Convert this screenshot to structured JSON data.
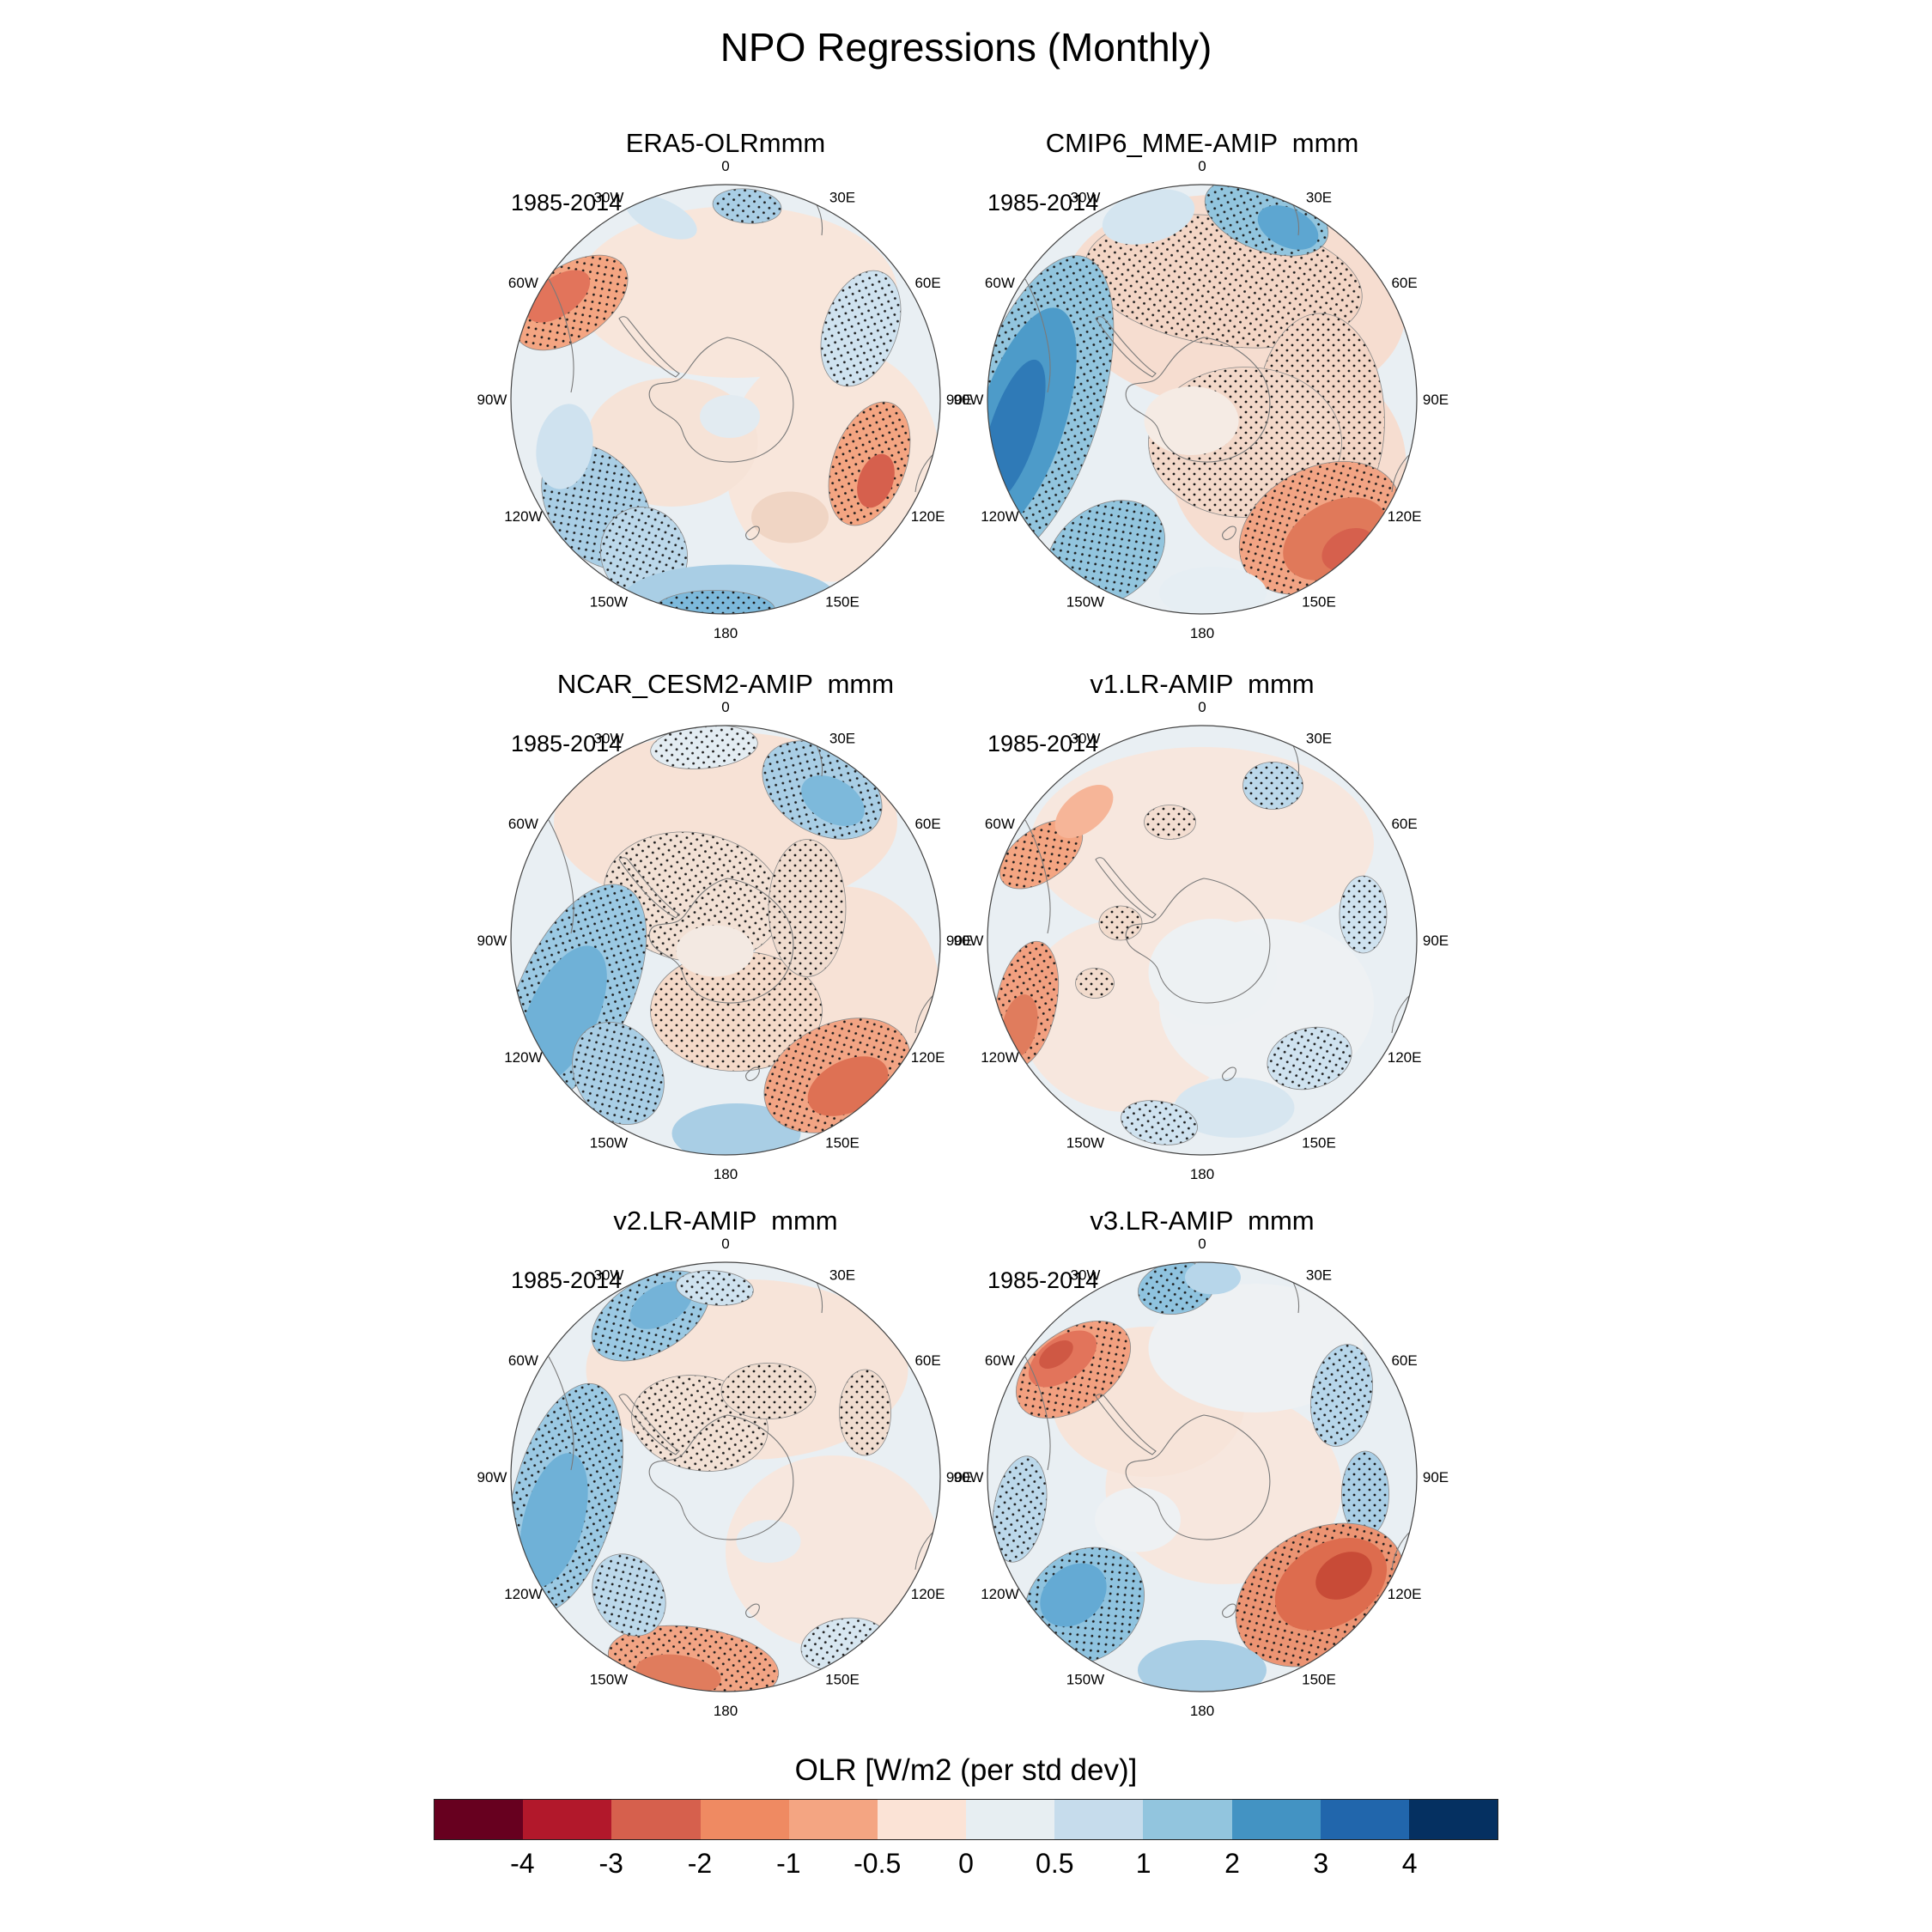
{
  "title": "NPO Regressions (Monthly)",
  "colorbar": {
    "label": "OLR [W/m2 (per std dev)]",
    "ticks": [
      "-4",
      "-3",
      "-2",
      "-1",
      "-0.5",
      "0",
      "0.5",
      "1",
      "2",
      "3",
      "4"
    ],
    "colors": [
      "#67001f",
      "#b2182b",
      "#d6604d",
      "#ef8a62",
      "#f4a582",
      "#fbe3d6",
      "#e7eef2",
      "#c6dcec",
      "#92c5de",
      "#4393c3",
      "#2166ac",
      "#053061"
    ]
  },
  "lon_labels": [
    "0",
    "30E",
    "60E",
    "90E",
    "120E",
    "150E",
    "180",
    "150W",
    "120W",
    "90W",
    "60W",
    "30W"
  ],
  "chart_data": {
    "type": "heatmap",
    "title": "NPO Regressions (Monthly)",
    "variable": "OLR [W/m2 (per std dev)]",
    "projection": "south-polar-stereographic",
    "period": "1985-2014",
    "value_ticks": [
      -4,
      -3,
      -2,
      -1,
      -0.5,
      0,
      0.5,
      1,
      2,
      3,
      4
    ],
    "base_color": "#e9eff3",
    "stipple_note": "dotted regions indicate statistical significance",
    "panels": [
      {
        "name": "ERA5-OLRmmm",
        "period": "1985-2014",
        "features": [
          {
            "x": 0.05,
            "y": -0.5,
            "rx": 0.75,
            "ry": 0.4,
            "rot": 0,
            "c": "#f8e6db"
          },
          {
            "x": 0.5,
            "y": 0.3,
            "rx": 0.5,
            "ry": 0.55,
            "rot": 0,
            "c": "#f8e6db"
          },
          {
            "x": -0.25,
            "y": 0.2,
            "rx": 0.4,
            "ry": 0.3,
            "rot": 0,
            "c": "#f6e3d7"
          },
          {
            "x": -0.72,
            "y": -0.45,
            "rx": 0.3,
            "ry": 0.17,
            "rot": -35,
            "c": "#f4a582",
            "s": true
          },
          {
            "x": -0.78,
            "y": -0.48,
            "rx": 0.17,
            "ry": 0.09,
            "rot": -35,
            "c": "#e2745b"
          },
          {
            "x": 0.63,
            "y": -0.33,
            "rx": 0.17,
            "ry": 0.28,
            "rot": 20,
            "c": "#cfe2ef",
            "s": true
          },
          {
            "x": 0.1,
            "y": -0.9,
            "rx": 0.16,
            "ry": 0.08,
            "rot": 5,
            "c": "#a9cee5",
            "s": true
          },
          {
            "x": -0.3,
            "y": -0.85,
            "rx": 0.18,
            "ry": 0.08,
            "rot": 25,
            "c": "#d4e5f0"
          },
          {
            "x": 0.67,
            "y": 0.3,
            "rx": 0.17,
            "ry": 0.3,
            "rot": 20,
            "c": "#f4a582",
            "s": true
          },
          {
            "x": 0.7,
            "y": 0.38,
            "rx": 0.08,
            "ry": 0.13,
            "rot": 20,
            "c": "#d6604d"
          },
          {
            "x": -0.6,
            "y": 0.5,
            "rx": 0.22,
            "ry": 0.32,
            "rot": -35,
            "c": "#a9cee5",
            "s": true
          },
          {
            "x": -0.38,
            "y": 0.72,
            "rx": 0.2,
            "ry": 0.22,
            "rot": -20,
            "c": "#bcd8ea",
            "s": true
          },
          {
            "x": -0.75,
            "y": 0.22,
            "rx": 0.13,
            "ry": 0.2,
            "rot": 10,
            "c": "#cfe2ef"
          },
          {
            "x": 0.02,
            "y": 0.93,
            "rx": 0.5,
            "ry": 0.16,
            "rot": 0,
            "c": "#a9cee5"
          },
          {
            "x": -0.05,
            "y": 0.98,
            "rx": 0.28,
            "ry": 0.09,
            "rot": 0,
            "c": "#7db9db",
            "s": true
          },
          {
            "x": 0.02,
            "y": 0.08,
            "rx": 0.14,
            "ry": 0.1,
            "rot": 0,
            "c": "#e2ebf1"
          },
          {
            "x": 0.3,
            "y": 0.55,
            "rx": 0.18,
            "ry": 0.12,
            "rot": 0,
            "c": "#f0d5c4"
          }
        ]
      },
      {
        "name": "CMIP6_MME-AMIP  mmm",
        "period": "1985-2014",
        "features": [
          {
            "x": 0.15,
            "y": -0.45,
            "rx": 0.8,
            "ry": 0.5,
            "rot": 5,
            "c": "#f6ddd0"
          },
          {
            "x": 0.4,
            "y": 0.3,
            "rx": 0.55,
            "ry": 0.5,
            "rot": 0,
            "c": "#f6ddd0"
          },
          {
            "x": 0.1,
            "y": -0.55,
            "rx": 0.65,
            "ry": 0.3,
            "rot": 8,
            "c": "#f3d5c5",
            "s": true
          },
          {
            "x": 0.55,
            "y": 0.1,
            "rx": 0.3,
            "ry": 0.5,
            "rot": 0,
            "c": "#f3d5c5",
            "s": true
          },
          {
            "x": 0.3,
            "y": -0.85,
            "rx": 0.3,
            "ry": 0.16,
            "rot": 20,
            "c": "#92c5de",
            "s": true
          },
          {
            "x": 0.4,
            "y": -0.8,
            "rx": 0.15,
            "ry": 0.09,
            "rot": 25,
            "c": "#5da6d1"
          },
          {
            "x": -0.25,
            "y": -0.85,
            "rx": 0.22,
            "ry": 0.12,
            "rot": -15,
            "c": "#d4e5f0"
          },
          {
            "x": -0.78,
            "y": 0.05,
            "rx": 0.3,
            "ry": 0.75,
            "rot": 18,
            "c": "#92c5de",
            "s": true
          },
          {
            "x": -0.84,
            "y": 0.1,
            "rx": 0.2,
            "ry": 0.55,
            "rot": 18,
            "c": "#4d9bc9"
          },
          {
            "x": -0.88,
            "y": 0.15,
            "rx": 0.11,
            "ry": 0.35,
            "rot": 18,
            "c": "#2f7ab7"
          },
          {
            "x": -0.45,
            "y": 0.72,
            "rx": 0.3,
            "ry": 0.22,
            "rot": -35,
            "c": "#92c5de",
            "s": true
          },
          {
            "x": 0.2,
            "y": 0.2,
            "rx": 0.45,
            "ry": 0.35,
            "rot": 0,
            "c": "#f3d8c9",
            "s": true
          },
          {
            "x": 0.55,
            "y": 0.6,
            "rx": 0.4,
            "ry": 0.28,
            "rot": -28,
            "c": "#f2a484",
            "s": true
          },
          {
            "x": 0.62,
            "y": 0.65,
            "rx": 0.26,
            "ry": 0.17,
            "rot": -28,
            "c": "#e0795a"
          },
          {
            "x": 0.68,
            "y": 0.7,
            "rx": 0.13,
            "ry": 0.09,
            "rot": -28,
            "c": "#d6604d"
          },
          {
            "x": -0.05,
            "y": 0.1,
            "rx": 0.22,
            "ry": 0.16,
            "rot": 0,
            "c": "#f5ebe4"
          },
          {
            "x": 0.05,
            "y": 0.9,
            "rx": 0.25,
            "ry": 0.12,
            "rot": 0,
            "c": "#e6eef3"
          }
        ]
      },
      {
        "name": "NCAR_CESM2-AMIP  mmm",
        "period": "1985-2014",
        "features": [
          {
            "x": 0,
            "y": -0.55,
            "rx": 0.8,
            "ry": 0.42,
            "rot": 0,
            "c": "#f7e2d6"
          },
          {
            "x": 0.55,
            "y": 0.25,
            "rx": 0.45,
            "ry": 0.5,
            "rot": 0,
            "c": "#f7e2d6"
          },
          {
            "x": 0.45,
            "y": -0.7,
            "rx": 0.3,
            "ry": 0.2,
            "rot": 30,
            "c": "#a9cee5",
            "s": true
          },
          {
            "x": 0.5,
            "y": -0.65,
            "rx": 0.16,
            "ry": 0.1,
            "rot": 30,
            "c": "#7db9db"
          },
          {
            "x": -0.1,
            "y": -0.9,
            "rx": 0.25,
            "ry": 0.1,
            "rot": -5,
            "c": "#e3ecf2",
            "s": true
          },
          {
            "x": -0.15,
            "y": -0.2,
            "rx": 0.42,
            "ry": 0.3,
            "rot": 10,
            "c": "#f2e0d4",
            "s": true
          },
          {
            "x": 0.05,
            "y": 0.33,
            "rx": 0.4,
            "ry": 0.28,
            "rot": 0,
            "c": "#f4d9c8",
            "s": true
          },
          {
            "x": 0.38,
            "y": -0.15,
            "rx": 0.18,
            "ry": 0.32,
            "rot": 0,
            "c": "#f0dccf",
            "s": true
          },
          {
            "x": -0.7,
            "y": 0.25,
            "rx": 0.26,
            "ry": 0.55,
            "rot": 25,
            "c": "#9bc9e3",
            "s": true
          },
          {
            "x": -0.76,
            "y": 0.35,
            "rx": 0.16,
            "ry": 0.35,
            "rot": 25,
            "c": "#6fb1d7"
          },
          {
            "x": -0.5,
            "y": 0.62,
            "rx": 0.2,
            "ry": 0.25,
            "rot": -30,
            "c": "#a9cee5",
            "s": true
          },
          {
            "x": 0.05,
            "y": 0.9,
            "rx": 0.3,
            "ry": 0.14,
            "rot": 0,
            "c": "#a9cee5"
          },
          {
            "x": 0.52,
            "y": 0.63,
            "rx": 0.36,
            "ry": 0.24,
            "rot": -26,
            "c": "#f2a484",
            "s": true
          },
          {
            "x": 0.57,
            "y": 0.68,
            "rx": 0.2,
            "ry": 0.12,
            "rot": -26,
            "c": "#de7154"
          },
          {
            "x": -0.05,
            "y": 0.05,
            "rx": 0.18,
            "ry": 0.12,
            "rot": 0,
            "c": "#f3e9e2"
          }
        ]
      },
      {
        "name": "v1.LR-AMIP  mmm",
        "period": "1985-2014",
        "features": [
          {
            "x": 0,
            "y": -0.45,
            "rx": 0.8,
            "ry": 0.45,
            "rot": 0,
            "c": "#f7e7de"
          },
          {
            "x": -0.35,
            "y": 0.35,
            "rx": 0.5,
            "ry": 0.45,
            "rot": 0,
            "c": "#f7e7de"
          },
          {
            "x": 0.3,
            "y": 0.3,
            "rx": 0.5,
            "ry": 0.4,
            "rot": 0,
            "c": "#eef1f3"
          },
          {
            "x": -0.75,
            "y": -0.4,
            "rx": 0.22,
            "ry": 0.12,
            "rot": -35,
            "c": "#f4a582",
            "s": true
          },
          {
            "x": -0.55,
            "y": -0.6,
            "rx": 0.16,
            "ry": 0.09,
            "rot": -40,
            "c": "#f6b598"
          },
          {
            "x": -0.82,
            "y": 0.3,
            "rx": 0.14,
            "ry": 0.3,
            "rot": 12,
            "c": "#f2a080",
            "s": true
          },
          {
            "x": -0.85,
            "y": 0.4,
            "rx": 0.08,
            "ry": 0.15,
            "rot": 12,
            "c": "#e07c5d"
          },
          {
            "x": -0.38,
            "y": -0.08,
            "rx": 0.1,
            "ry": 0.08,
            "rot": 0,
            "c": "#f2dbcc",
            "s": true
          },
          {
            "x": -0.5,
            "y": 0.2,
            "rx": 0.09,
            "ry": 0.07,
            "rot": 0,
            "c": "#f2dbcc",
            "s": true
          },
          {
            "x": 0.33,
            "y": -0.72,
            "rx": 0.14,
            "ry": 0.11,
            "rot": 0,
            "c": "#bcd8ea",
            "s": true
          },
          {
            "x": 0.75,
            "y": -0.12,
            "rx": 0.11,
            "ry": 0.18,
            "rot": 0,
            "c": "#cfe2ef",
            "s": true
          },
          {
            "x": 0.5,
            "y": 0.55,
            "rx": 0.2,
            "ry": 0.14,
            "rot": -15,
            "c": "#cfe2ef",
            "s": true
          },
          {
            "x": 0.15,
            "y": 0.78,
            "rx": 0.28,
            "ry": 0.14,
            "rot": 0,
            "c": "#d7e6f0"
          },
          {
            "x": -0.2,
            "y": 0.85,
            "rx": 0.18,
            "ry": 0.1,
            "rot": 10,
            "c": "#cfe2ef",
            "s": true
          },
          {
            "x": 0.05,
            "y": 0.15,
            "rx": 0.3,
            "ry": 0.25,
            "rot": 0,
            "c": "#edf1f3"
          },
          {
            "x": -0.15,
            "y": -0.55,
            "rx": 0.12,
            "ry": 0.08,
            "rot": 0,
            "c": "#f3ddd0",
            "s": true
          }
        ]
      },
      {
        "name": "v2.LR-AMIP  mmm",
        "period": "1985-2014",
        "features": [
          {
            "x": 0.1,
            "y": -0.5,
            "rx": 0.75,
            "ry": 0.42,
            "rot": 0,
            "c": "#f7e4d9"
          },
          {
            "x": 0.5,
            "y": 0.35,
            "rx": 0.5,
            "ry": 0.45,
            "rot": 0,
            "c": "#f7e7de"
          },
          {
            "x": -0.35,
            "y": -0.75,
            "rx": 0.3,
            "ry": 0.17,
            "rot": -30,
            "c": "#9bc9e3",
            "s": true
          },
          {
            "x": -0.3,
            "y": -0.8,
            "rx": 0.16,
            "ry": 0.09,
            "rot": -30,
            "c": "#74b3d8"
          },
          {
            "x": -0.05,
            "y": -0.88,
            "rx": 0.18,
            "ry": 0.08,
            "rot": 5,
            "c": "#cfe2ef",
            "s": true
          },
          {
            "x": -0.75,
            "y": 0.1,
            "rx": 0.24,
            "ry": 0.55,
            "rot": 15,
            "c": "#9bc9e3",
            "s": true
          },
          {
            "x": -0.8,
            "y": 0.2,
            "rx": 0.14,
            "ry": 0.32,
            "rot": 15,
            "c": "#6fb1d7"
          },
          {
            "x": -0.12,
            "y": -0.25,
            "rx": 0.32,
            "ry": 0.22,
            "rot": 10,
            "c": "#f2e0d4",
            "s": true
          },
          {
            "x": 0.2,
            "y": -0.4,
            "rx": 0.22,
            "ry": 0.13,
            "rot": 0,
            "c": "#f0ddd0",
            "s": true
          },
          {
            "x": -0.15,
            "y": 0.87,
            "rx": 0.4,
            "ry": 0.17,
            "rot": 8,
            "c": "#f2a484",
            "s": true
          },
          {
            "x": -0.22,
            "y": 0.92,
            "rx": 0.2,
            "ry": 0.09,
            "rot": 8,
            "c": "#e07c5d"
          },
          {
            "x": 0.55,
            "y": 0.78,
            "rx": 0.2,
            "ry": 0.12,
            "rot": -10,
            "c": "#d7e6f0",
            "s": true
          },
          {
            "x": 0.2,
            "y": 0.3,
            "rx": 0.15,
            "ry": 0.1,
            "rot": 0,
            "c": "#e6edf2"
          },
          {
            "x": 0.65,
            "y": -0.3,
            "rx": 0.12,
            "ry": 0.2,
            "rot": 0,
            "c": "#f0dccf",
            "s": true
          },
          {
            "x": -0.45,
            "y": 0.55,
            "rx": 0.16,
            "ry": 0.2,
            "rot": -30,
            "c": "#bcd8ea",
            "s": true
          }
        ]
      },
      {
        "name": "v3.LR-AMIP  mmm",
        "period": "1985-2014",
        "features": [
          {
            "x": 0.1,
            "y": 0.05,
            "rx": 0.55,
            "ry": 0.45,
            "rot": 0,
            "c": "#f7e7de"
          },
          {
            "x": -0.25,
            "y": -0.35,
            "rx": 0.45,
            "ry": 0.35,
            "rot": 0,
            "c": "#f7e4d9"
          },
          {
            "x": 0.25,
            "y": -0.6,
            "rx": 0.5,
            "ry": 0.3,
            "rot": 0,
            "c": "#eef1f3"
          },
          {
            "x": -0.6,
            "y": -0.5,
            "rx": 0.3,
            "ry": 0.18,
            "rot": -35,
            "c": "#f2a080",
            "s": true
          },
          {
            "x": -0.65,
            "y": -0.55,
            "rx": 0.18,
            "ry": 0.1,
            "rot": -35,
            "c": "#e2745b"
          },
          {
            "x": -0.68,
            "y": -0.57,
            "rx": 0.09,
            "ry": 0.05,
            "rot": -35,
            "c": "#cf5844"
          },
          {
            "x": -0.12,
            "y": -0.88,
            "rx": 0.18,
            "ry": 0.12,
            "rot": -10,
            "c": "#8fc3df",
            "s": true
          },
          {
            "x": 0.05,
            "y": -0.93,
            "rx": 0.13,
            "ry": 0.08,
            "rot": 0,
            "c": "#b7d6ea"
          },
          {
            "x": 0.65,
            "y": -0.38,
            "rx": 0.14,
            "ry": 0.24,
            "rot": 10,
            "c": "#b7d6ea",
            "s": true
          },
          {
            "x": 0.76,
            "y": 0.08,
            "rx": 0.11,
            "ry": 0.2,
            "rot": 0,
            "c": "#a9cee5",
            "s": true
          },
          {
            "x": 0.55,
            "y": 0.55,
            "rx": 0.42,
            "ry": 0.3,
            "rot": -30,
            "c": "#ec9473",
            "s": true
          },
          {
            "x": 0.6,
            "y": 0.5,
            "rx": 0.28,
            "ry": 0.19,
            "rot": -30,
            "c": "#dd6c4e"
          },
          {
            "x": 0.66,
            "y": 0.46,
            "rx": 0.14,
            "ry": 0.1,
            "rot": -30,
            "c": "#c84b37"
          },
          {
            "x": -0.55,
            "y": 0.6,
            "rx": 0.3,
            "ry": 0.25,
            "rot": -40,
            "c": "#8fc3df",
            "s": true
          },
          {
            "x": -0.6,
            "y": 0.55,
            "rx": 0.17,
            "ry": 0.13,
            "rot": -40,
            "c": "#64aad4"
          },
          {
            "x": 0,
            "y": 0.9,
            "rx": 0.3,
            "ry": 0.14,
            "rot": 0,
            "c": "#a9cee5"
          },
          {
            "x": -0.3,
            "y": 0.2,
            "rx": 0.2,
            "ry": 0.15,
            "rot": 0,
            "c": "#eef1f3"
          },
          {
            "x": -0.85,
            "y": 0.15,
            "rx": 0.12,
            "ry": 0.25,
            "rot": 10,
            "c": "#bcd8ea",
            "s": true
          }
        ]
      }
    ]
  }
}
